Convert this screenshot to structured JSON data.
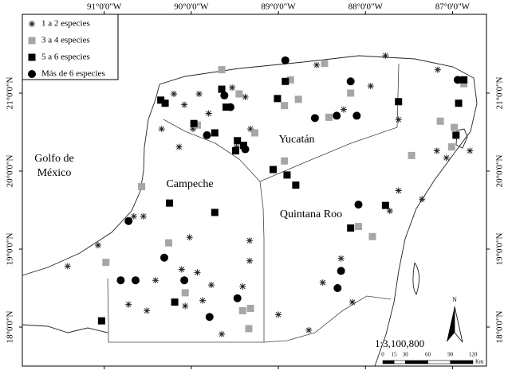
{
  "map": {
    "xlim": [
      -91.94,
      -86.61
    ],
    "ylim": [
      17.5,
      22.01
    ],
    "xticks": [
      {
        "value": -91,
        "label": "91°0'0\"W"
      },
      {
        "value": -90,
        "label": "90°0'0\"W"
      },
      {
        "value": -89,
        "label": "89°0'0\"W"
      },
      {
        "value": -88,
        "label": "88°0'0\"W"
      },
      {
        "value": -87,
        "label": "87°0'0\"W"
      }
    ],
    "yticks": [
      {
        "value": 18,
        "label": "18°0'0\"N"
      },
      {
        "value": 19,
        "label": "19°0'0\"N"
      },
      {
        "value": 20,
        "label": "20°0'0\"N"
      },
      {
        "value": 21,
        "label": "21°0'0\"N"
      }
    ],
    "legend": [
      {
        "label": "1 a 2 especies",
        "symbol": "asterisk",
        "color": "#222222",
        "points": {
          "lon": [
            -87.77,
            -87.17,
            -87.94,
            -88.56,
            -89.53,
            -89.91,
            -90.2,
            -89.38,
            -90.08,
            -89.8,
            -90.34,
            -89.98,
            -89.32,
            -90.14,
            -89.48,
            -88.25,
            -87.62,
            -86.8,
            -87.62,
            -87.72,
            -87.18,
            -90.66,
            -90.55,
            -91.07,
            -91.42,
            -90.11,
            -89.93,
            -89.77,
            -89.87,
            -90.41,
            -90.72,
            -90.51,
            -90.07,
            -89.33,
            -89.33,
            -89.41,
            -89.65,
            -88.28,
            -88.49,
            -88.65,
            -89.0,
            -88.15,
            -87.07,
            -87.35,
            -90.02
          ],
          "lat": [
            21.48,
            21.3,
            21.09,
            21.36,
            21.07,
            20.99,
            20.99,
            20.95,
            20.85,
            20.74,
            20.54,
            20.54,
            20.54,
            20.31,
            20.31,
            20.79,
            20.66,
            20.26,
            19.75,
            19.49,
            20.26,
            19.42,
            19.42,
            19.05,
            18.78,
            18.74,
            18.7,
            18.54,
            18.34,
            18.6,
            18.29,
            18.21,
            18.27,
            19.11,
            18.85,
            18.52,
            17.91,
            18.88,
            18.57,
            17.96,
            18.16,
            18.32,
            20.17,
            19.64,
            19.15
          ]
        }
      },
      {
        "label": "3 a 4 especies",
        "symbol": "square",
        "color": "#a6a6a6",
        "points": {
          "lon": [
            -89.65,
            -88.47,
            -88.86,
            -88.17,
            -88.77,
            -88.93,
            -89.45,
            -88.42,
            -89.93,
            -89.27,
            -86.98,
            -87.14,
            -86.87,
            -90.57,
            -88.93,
            -88.08,
            -87.92,
            -90.26,
            -90.98,
            -90.07,
            -89.41,
            -89.32,
            -89.34,
            -87.47,
            -87.01
          ],
          "lat": [
            21.3,
            21.38,
            21.17,
            21.0,
            20.92,
            20.84,
            20.99,
            20.69,
            20.59,
            20.49,
            20.56,
            20.64,
            21.12,
            19.8,
            20.13,
            19.29,
            19.16,
            19.08,
            18.83,
            18.44,
            18.21,
            18.24,
            17.98,
            20.2,
            20.31
          ]
        }
      },
      {
        "label": "5 a 6 especies",
        "symbol": "square",
        "color": "#000000",
        "points": {
          "lon": [
            -89.65,
            -88.92,
            -89.01,
            -86.87,
            -87.62,
            -90.35,
            -90.3,
            -89.6,
            -89.97,
            -89.73,
            -89.47,
            -89.49,
            -89.06,
            -88.9,
            -88.8,
            -90.25,
            -89.73,
            -87.77,
            -88.17,
            -90.19,
            -91.03,
            -86.93,
            -86.96,
            -89.4
          ],
          "lat": [
            21.05,
            21.15,
            20.93,
            21.17,
            20.89,
            20.91,
            20.87,
            20.82,
            20.61,
            20.49,
            20.39,
            20.26,
            20.02,
            19.95,
            19.82,
            19.59,
            19.47,
            19.56,
            19.27,
            18.32,
            18.08,
            20.87,
            20.46,
            20.33
          ]
        }
      },
      {
        "label": "Más de 6 especies",
        "symbol": "circle",
        "color": "#000000",
        "points": {
          "lon": [
            -88.92,
            -88.17,
            -86.94,
            -89.62,
            -89.55,
            -89.38,
            -88.33,
            -88.1,
            -88.58,
            -89.82,
            -88.08,
            -90.72,
            -90.31,
            -90.81,
            -90.64,
            -90.08,
            -89.47,
            -89.79,
            -88.28,
            -88.32
          ],
          "lat": [
            21.42,
            21.15,
            21.17,
            20.97,
            20.82,
            20.28,
            20.71,
            20.71,
            20.68,
            20.46,
            19.57,
            19.36,
            18.89,
            18.6,
            18.6,
            18.6,
            18.37,
            18.13,
            18.72,
            18.5
          ]
        }
      }
    ],
    "places": [
      "Golfo de",
      "México",
      "Campeche",
      "Yucatán",
      "Quintana Roo"
    ],
    "scale": "1:3,100,800",
    "scale_bar": {
      "ticks": [
        0,
        15,
        30,
        60,
        90,
        120
      ],
      "unit": "Km"
    },
    "north": "N"
  }
}
